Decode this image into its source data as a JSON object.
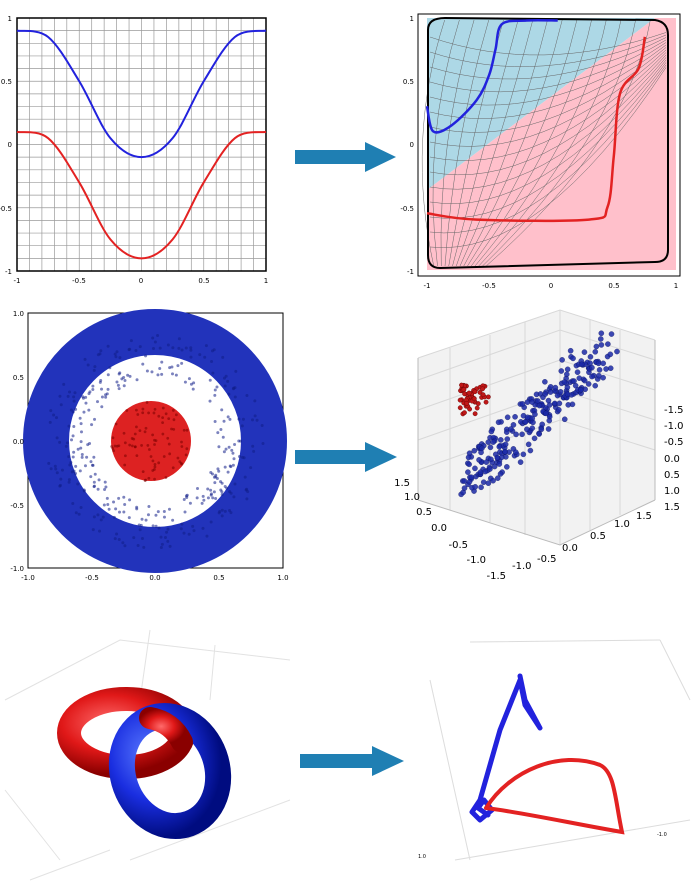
{
  "colors": {
    "red_series": "#e32222",
    "blue_series": "#2222dd",
    "arrow": "#1f7fb3",
    "region_blue": "#add8e6",
    "region_pink": "#ffc0cb",
    "ring_blue": "#2233bb",
    "disk_red": "#dd2222"
  },
  "chart_data": [
    {
      "type": "line",
      "panel": "top-left",
      "xlim": [
        -1,
        1
      ],
      "ylim": [
        -1,
        1
      ],
      "grid": true,
      "xticks": [
        "-1",
        "-0.5",
        "0",
        "0.5",
        "1"
      ],
      "yticks": [
        "1",
        "0.5",
        "0",
        "-0.5",
        "-1"
      ],
      "series": [
        {
          "color": "blue",
          "x": [
            -1,
            -0.75,
            -0.5,
            -0.25,
            0,
            0.25,
            0.5,
            0.75,
            1
          ],
          "y": [
            0.9,
            0.85,
            0.5,
            0.05,
            -0.1,
            0.05,
            0.5,
            0.85,
            0.9
          ]
        },
        {
          "color": "red",
          "x": [
            -1,
            -0.75,
            -0.5,
            -0.25,
            0,
            0.25,
            0.5,
            0.75,
            1
          ],
          "y": [
            0.1,
            0.05,
            -0.3,
            -0.75,
            -0.9,
            -0.75,
            -0.3,
            0.05,
            0.1
          ]
        }
      ]
    },
    {
      "type": "line",
      "panel": "top-right",
      "xlim": [
        -1,
        1
      ],
      "ylim": [
        -1,
        1
      ],
      "grid": "warped",
      "xticks": [
        "-1",
        "-0.5",
        "0",
        "0.5",
        "1"
      ],
      "yticks": [
        "1",
        "0.5",
        "0",
        "-0.5",
        "-1"
      ],
      "regions": [
        "light-blue upper-left",
        "pink lower-right"
      ],
      "series": [
        {
          "color": "blue",
          "x": [
            -1,
            -0.95,
            -0.8,
            -0.6,
            -0.5,
            -0.45,
            -0.4,
            -0.2,
            0.05
          ],
          "y": [
            0.3,
            0.1,
            0.15,
            0.35,
            0.55,
            0.75,
            0.95,
            0.98,
            0.98
          ]
        },
        {
          "color": "red",
          "x": [
            -1,
            -0.6,
            0.3,
            0.45,
            0.5,
            0.55,
            0.7,
            0.75
          ],
          "y": [
            -0.55,
            -0.6,
            -0.6,
            -0.5,
            -0.1,
            0.4,
            0.6,
            0.85
          ]
        }
      ]
    },
    {
      "type": "scatter",
      "panel": "middle-left",
      "xlim": [
        -1,
        1
      ],
      "ylim": [
        -1,
        1
      ],
      "xticks": [
        "-1.0",
        "-0.5",
        "0.0",
        "0.5",
        "1.0"
      ],
      "yticks": [
        "1.0",
        "0.5",
        "0.0",
        "-0.5",
        "-1.0"
      ],
      "series": [
        {
          "color": "blue",
          "shape": "ring",
          "r_inner": 0.55,
          "r_outer": 0.95
        },
        {
          "color": "red",
          "shape": "disk",
          "r_outer": 0.35
        }
      ]
    },
    {
      "type": "scatter",
      "panel": "middle-right",
      "projection": "3d",
      "xticks": [
        "1.5",
        "1.0",
        "0.5",
        "0.0",
        "-0.5",
        "-1.0",
        "-1.5"
      ],
      "yticks": [
        "-1.0",
        "-0.5",
        "0.0",
        "0.5",
        "1.0",
        "1.5"
      ],
      "zticks": [
        "-1.5",
        "-1.0",
        "-0.5",
        "0.0",
        "0.5",
        "1.0",
        "1.5"
      ]
    },
    {
      "type": "other",
      "panel": "bottom-left",
      "description_colors": [
        "red",
        "blue"
      ]
    },
    {
      "type": "line",
      "panel": "bottom-right",
      "projection": "3d",
      "ticks": [
        "-1.0",
        "1.0"
      ]
    }
  ]
}
